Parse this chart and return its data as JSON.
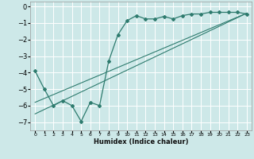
{
  "xlabel": "Humidex (Indice chaleur)",
  "ylabel": "",
  "bg_color": "#cde8e8",
  "line_color": "#2e7b6e",
  "grid_color": "#ffffff",
  "xlim": [
    -0.5,
    23.5
  ],
  "ylim": [
    -7.5,
    0.3
  ],
  "yticks": [
    0,
    -1,
    -2,
    -3,
    -4,
    -5,
    -6,
    -7
  ],
  "xticks": [
    0,
    1,
    2,
    3,
    4,
    5,
    6,
    7,
    8,
    9,
    10,
    11,
    12,
    13,
    14,
    15,
    16,
    17,
    18,
    19,
    20,
    21,
    22,
    23
  ],
  "data_x": [
    0,
    1,
    2,
    3,
    4,
    5,
    6,
    7,
    8,
    9,
    10,
    11,
    12,
    13,
    14,
    15,
    16,
    17,
    18,
    19,
    20,
    21,
    22,
    23
  ],
  "data_y": [
    -3.9,
    -5.0,
    -6.0,
    -5.7,
    -6.0,
    -6.95,
    -5.8,
    -6.0,
    -3.3,
    -1.7,
    -0.85,
    -0.55,
    -0.75,
    -0.75,
    -0.6,
    -0.75,
    -0.55,
    -0.45,
    -0.45,
    -0.35,
    -0.35,
    -0.35,
    -0.35,
    -0.45
  ],
  "line1_x": [
    0,
    23
  ],
  "line1_y": [
    -6.5,
    -0.4
  ],
  "line2_x": [
    0,
    23
  ],
  "line2_y": [
    -5.8,
    -0.4
  ]
}
